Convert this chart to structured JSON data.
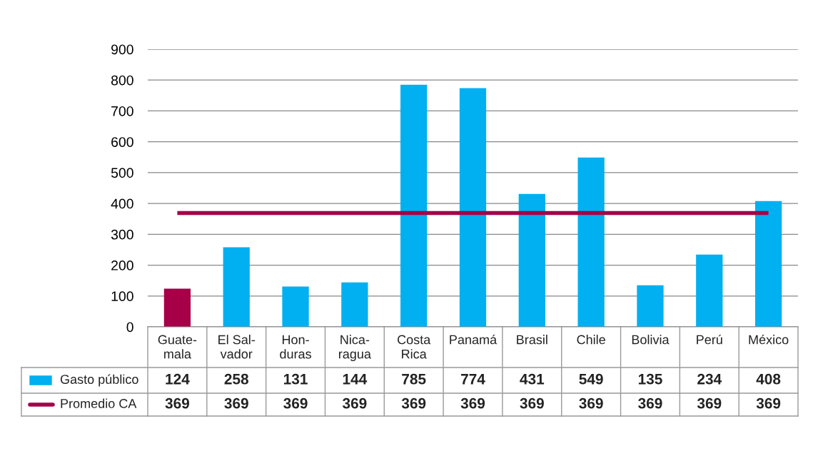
{
  "chart_data": {
    "type": "bar",
    "categories": [
      "Guate-\nmala",
      "El Sal-\nvador",
      "Hon-\nduras",
      "Nica-\nragua",
      "Costa\nRica",
      "Panamá",
      "Brasil",
      "Chile",
      "Bolivia",
      "Perú",
      "México"
    ],
    "series": [
      {
        "name": "Gasto público",
        "color": "#00b0f0",
        "colors": [
          "#a50048",
          "#00b0f0",
          "#00b0f0",
          "#00b0f0",
          "#00b0f0",
          "#00b0f0",
          "#00b0f0",
          "#00b0f0",
          "#00b0f0",
          "#00b0f0",
          "#00b0f0"
        ],
        "values": [
          124,
          258,
          131,
          144,
          785,
          774,
          431,
          549,
          135,
          234,
          408
        ]
      },
      {
        "name": "Promedio CA",
        "type": "line",
        "color": "#a50048",
        "values": [
          369,
          369,
          369,
          369,
          369,
          369,
          369,
          369,
          369,
          369,
          369
        ]
      }
    ],
    "ylim": [
      0,
      900
    ],
    "yticks": [
      0,
      100,
      200,
      300,
      400,
      500,
      600,
      700,
      800,
      900
    ],
    "grid": "y",
    "legend": "bottom",
    "data_labels": true
  }
}
